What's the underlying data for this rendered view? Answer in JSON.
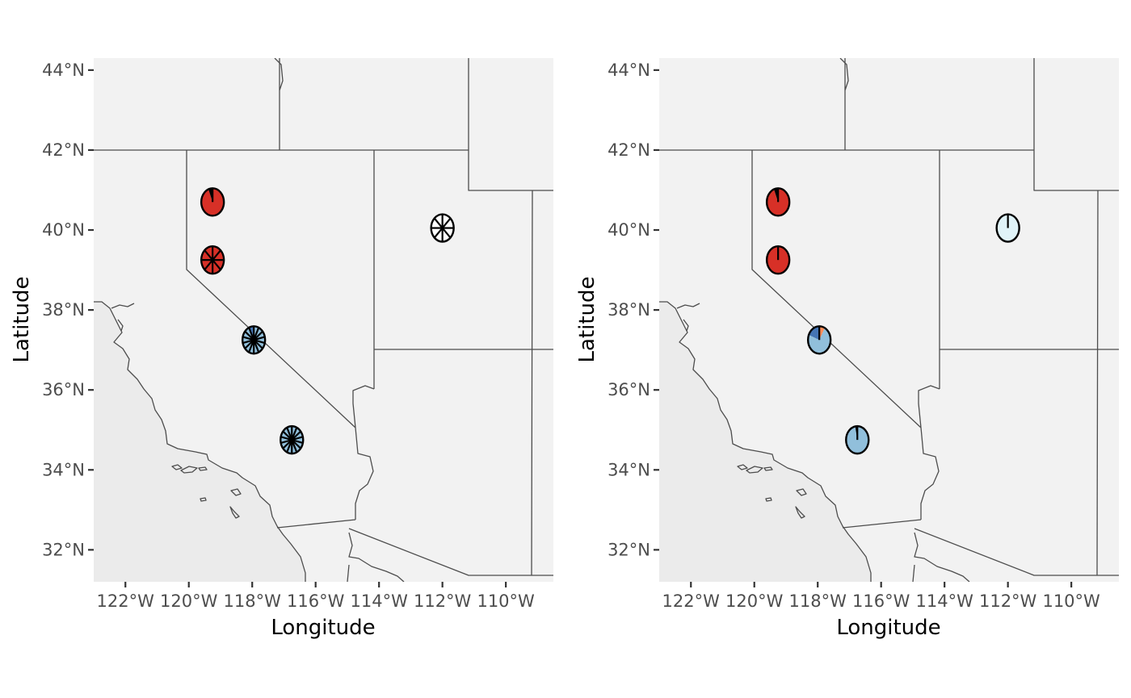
{
  "colors": {
    "panel_background": "#f2f2f2",
    "ocean": "#ebebeb",
    "border_line": "#4d4d4d",
    "pie_outline": "#000000",
    "red": "#d73027",
    "blue_light": "#91bfdb",
    "blue_mid": "#4575b4",
    "orange": "#fc8d59",
    "pale_blue": "#e0f3f8"
  },
  "chart_data": [
    {
      "type": "map-pie",
      "xlabel": "Longitude",
      "ylabel": "Latitude",
      "xlim": [
        -123,
        -108.5
      ],
      "ylim": [
        31.2,
        44.3
      ],
      "x_ticks": [
        -122,
        -120,
        -118,
        -116,
        -114,
        -112,
        -110
      ],
      "x_tick_labels": [
        "122°W",
        "120°W",
        "118°W",
        "116°W",
        "114°W",
        "112°W",
        "110°W"
      ],
      "y_ticks": [
        32,
        34,
        36,
        38,
        40,
        42,
        44
      ],
      "y_tick_labels": [
        "32°N",
        "34°N",
        "36°N",
        "38°N",
        "40°N",
        "42°N",
        "44°N"
      ],
      "pies": [
        {
          "lon": -119.25,
          "lat": 40.7,
          "slices": [
            {
              "value": 0.94,
              "color": "#d73027"
            },
            {
              "value": 0.06,
              "color": "#000000"
            }
          ]
        },
        {
          "lon": -119.25,
          "lat": 39.25,
          "slices": [
            {
              "value": 1,
              "color": "#d73027"
            }
          ],
          "spokes": 8
        },
        {
          "lon": -117.95,
          "lat": 37.25,
          "slices": [
            {
              "value": 0.92,
              "color": "#91bfdb"
            },
            {
              "value": 0.08,
              "color": "#4575b4"
            }
          ],
          "spokes": 14
        },
        {
          "lon": -116.75,
          "lat": 34.75,
          "slices": [
            {
              "value": 1,
              "color": "#91bfdb"
            }
          ],
          "spokes": 14
        },
        {
          "lon": -112.0,
          "lat": 40.05,
          "slices": [
            {
              "value": 1,
              "color": "#ffffff"
            }
          ],
          "spokes": 8
        }
      ]
    },
    {
      "type": "map-pie",
      "xlabel": "Longitude",
      "ylabel": "Latitude",
      "xlim": [
        -123,
        -108.5
      ],
      "ylim": [
        31.2,
        44.3
      ],
      "x_ticks": [
        -122,
        -120,
        -118,
        -116,
        -114,
        -112,
        -110
      ],
      "x_tick_labels": [
        "122°W",
        "120°W",
        "118°W",
        "116°W",
        "114°W",
        "112°W",
        "110°W"
      ],
      "y_ticks": [
        32,
        34,
        36,
        38,
        40,
        42,
        44
      ],
      "y_tick_labels": [
        "32°N",
        "34°N",
        "36°N",
        "38°N",
        "40°N",
        "42°N",
        "44°N"
      ],
      "pies": [
        {
          "lon": -119.25,
          "lat": 40.7,
          "slices": [
            {
              "value": 0.94,
              "color": "#d73027"
            },
            {
              "value": 0.06,
              "color": "#000000"
            }
          ]
        },
        {
          "lon": -119.25,
          "lat": 39.25,
          "slices": [
            {
              "value": 0.995,
              "color": "#d73027"
            },
            {
              "value": 0.005,
              "color": "#000000"
            }
          ]
        },
        {
          "lon": -117.95,
          "lat": 37.25,
          "slices": [
            {
              "value": 0.08,
              "color": "#fc8d59"
            },
            {
              "value": 0.73,
              "color": "#91bfdb"
            },
            {
              "value": 0.19,
              "color": "#4575b4"
            }
          ]
        },
        {
          "lon": -116.75,
          "lat": 34.75,
          "slices": [
            {
              "value": 0.97,
              "color": "#91bfdb"
            },
            {
              "value": 0.03,
              "color": "#000000"
            }
          ]
        },
        {
          "lon": -112.0,
          "lat": 40.05,
          "slices": [
            {
              "value": 0.995,
              "color": "#e0f3f8"
            },
            {
              "value": 0.005,
              "color": "#000000"
            }
          ]
        }
      ]
    }
  ]
}
